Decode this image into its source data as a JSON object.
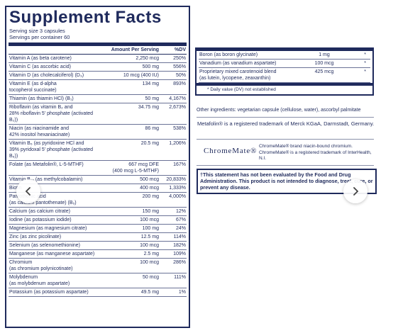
{
  "facts": {
    "title": "Supplement Facts",
    "serving_size": "Serving size  3 capsules",
    "servings_per_container": "Servings per container  60",
    "header": {
      "amount": "Amount Per Serving",
      "dv": "%DV"
    },
    "rows": [
      {
        "name": "Vitamin A (as beta carotene)",
        "amount": "2,250 mcg",
        "dv": "250%"
      },
      {
        "name": "Vitamin C (as ascorbic acid)",
        "amount": "500 mg",
        "dv": "556%"
      },
      {
        "name": "Vitamin D (as cholecalciferol) (D₃)",
        "amount": "10 mcg (400 IU)",
        "dv": "50%"
      },
      {
        "name": "Vitamin E (as d-alpha\ntocopherol succinate)",
        "amount": "134 mg",
        "dv": "893%"
      },
      {
        "name": "Thiamin (as thiamin HCl) (B₁)",
        "amount": "50 mg",
        "dv": "4,167%"
      },
      {
        "name": "Riboflavin (as vitamin B₂ and\n28% riboflavin 5′ phosphate (activated B₂))",
        "amount": "34.75 mg",
        "dv": "2,673%"
      },
      {
        "name": "Niacin (as niacinamide and\n42% inositol hexaniacinate)",
        "amount": "86 mg",
        "dv": "538%"
      },
      {
        "name": "Vitamin B₆ (as pyridoxine HCl and\n39% pyridoxal 5′ phosphate (activated B₆))",
        "amount": "20.5 mg",
        "dv": "1,206%"
      },
      {
        "name": "Folate (as Metafolin®, L-5-MTHF)",
        "amount": "667 mcg DFE\n(400 mcg L-5-MTHF)",
        "dv": "167%"
      },
      {
        "name": "Vitamin B₁₂ (as methylcobalamin)",
        "amount": "500 mcg",
        "dv": "20,833%"
      },
      {
        "name": "Biotin",
        "amount": "400 mcg",
        "dv": "1,333%"
      },
      {
        "name": "Pantothenic acid\n(as calcium pantothenate) (B₅)",
        "amount": "200 mg",
        "dv": "4,000%"
      },
      {
        "name": "Calcium (as calcium citrate)",
        "amount": "150 mg",
        "dv": "12%"
      },
      {
        "name": "Iodine (as potassium iodide)",
        "amount": "100 mcg",
        "dv": "67%"
      },
      {
        "name": "Magnesium (as magnesium citrate)",
        "amount": "100 mg",
        "dv": "24%"
      },
      {
        "name": "Zinc (as zinc picolinate)",
        "amount": "12.5 mg",
        "dv": "114%"
      },
      {
        "name": "Selenium (as selenomethionine)",
        "amount": "100 mcg",
        "dv": "182%"
      },
      {
        "name": "Manganese (as manganese aspartate)",
        "amount": "2.5 mg",
        "dv": "109%"
      },
      {
        "name": "Chromium\n(as chromium polynicotinate)",
        "amount": "100 mcg",
        "dv": "286%"
      },
      {
        "name": "Molybdenum\n(as molybdenum aspartate)",
        "amount": "50 mcg",
        "dv": "111%"
      },
      {
        "name": "Potassium (as potassium aspartate)",
        "amount": "49.5 mg",
        "dv": "1%"
      }
    ]
  },
  "facts_continued": {
    "rows": [
      {
        "name": "Boron (as boron glycinate)",
        "amount": "1 mg",
        "dv": "*"
      },
      {
        "name": "Vanadium (as vanadium aspartate)",
        "amount": "100 mcg",
        "dv": "*"
      },
      {
        "name": "Proprietary mixed carotenoid blend\n(as lutein, lycopene, zeaxanthin)",
        "amount": "425 mcg",
        "dv": "*"
      }
    ],
    "footnote": "* Daily value (DV) not established"
  },
  "other_ingredients": "Other ingredients: vegetarian capsule (cellulose, water), ascorbyl palmitate",
  "metafolin_note": "Metafolin® is a registered trademark of Merck KGaA, Darmstadt, Germany.",
  "chromemate": {
    "logo_text": "ChromeMate®",
    "note": "ChromeMate® brand niacin-bound chromium. ChromeMate® is a registered trademark of InterHealth, N.I."
  },
  "fda_statement": "†This statement has not been evaluated by the Food and Drug Administration. This product is not intended to diagnose, treat, cure, or prevent any disease.",
  "icons": {
    "prev": "chevron-left-icon",
    "next": "chevron-right-icon"
  },
  "colors": {
    "label_navy": "#1f2a5c",
    "rule_gray": "#6a7296"
  }
}
